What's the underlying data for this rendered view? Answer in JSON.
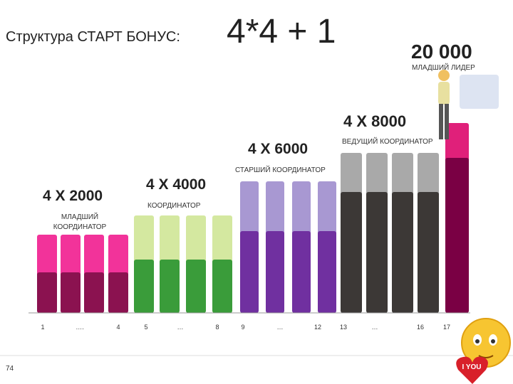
{
  "header": {
    "title": "Структура СТАРТ БОНУС:",
    "formula": "4*4 + 1"
  },
  "levels": [
    {
      "amount": "4 X 2000",
      "rank": [
        "МЛАДШИЙ",
        "КООРДИНАТОР"
      ]
    },
    {
      "amount": "4 X 4000",
      "rank": [
        "КООРДИНАТОР"
      ]
    },
    {
      "amount": "4 X 6000",
      "rank": [
        "СТАРШИЙ КООРДИНАТОР"
      ]
    },
    {
      "amount": "4 X 8000",
      "rank": [
        "ВЕДУЩИЙ КООРДИНАТОР"
      ]
    },
    {
      "amount": "20 000",
      "rank": [
        "МЛАДШИЙ ЛИДЕР"
      ]
    }
  ],
  "positions": [
    "1",
    "….",
    "4",
    "5",
    "…",
    "8",
    "9",
    "…",
    "12",
    "13",
    "…",
    "16",
    "17"
  ],
  "footer": {
    "page": "74",
    "sticker": "I YOU"
  }
}
